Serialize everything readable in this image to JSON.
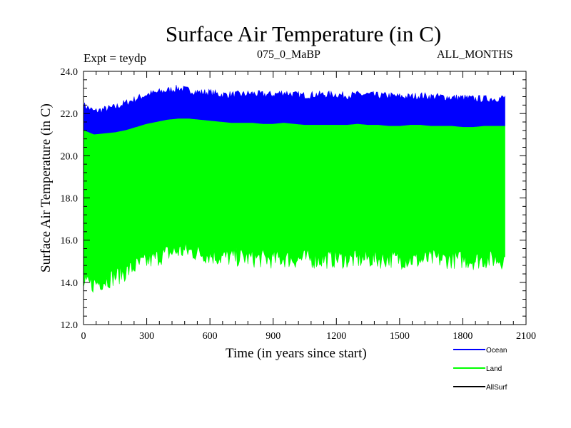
{
  "chart_data": {
    "type": "area",
    "title": "Surface Air Temperature (in C)",
    "subtitle_left": "Expt = teydp",
    "subtitle_center": "075_0_MaBP",
    "subtitle_right": "ALL_MONTHS",
    "xlabel": "Time (in years since start)",
    "ylabel": "Surface Air Temperature (in C)",
    "xlim": [
      0,
      2100
    ],
    "ylim": [
      12.0,
      24.0
    ],
    "x_ticks": [
      0,
      300,
      600,
      900,
      1200,
      1500,
      1800,
      2100
    ],
    "x_tick_labels": [
      "0",
      "300",
      "600",
      "900",
      "1200",
      "1500",
      "1800",
      "2100"
    ],
    "y_ticks": [
      12.0,
      14.0,
      16.0,
      18.0,
      20.0,
      22.0,
      24.0
    ],
    "y_tick_labels": [
      "12.0",
      "14.0",
      "16.0",
      "18.0",
      "20.0",
      "22.0",
      "24.0"
    ],
    "x": [
      0,
      50,
      100,
      150,
      200,
      250,
      300,
      350,
      400,
      450,
      500,
      550,
      600,
      650,
      700,
      750,
      800,
      850,
      900,
      950,
      1000,
      1050,
      1100,
      1150,
      1200,
      1250,
      1300,
      1350,
      1400,
      1450,
      1500,
      1550,
      1600,
      1650,
      1700,
      1750,
      1800,
      1850,
      1900,
      1950,
      2000
    ],
    "series": [
      {
        "name": "Ocean",
        "color": "#0000ff",
        "upper": [
          22.4,
          22.1,
          22.2,
          22.3,
          22.5,
          22.7,
          22.9,
          23.0,
          23.1,
          23.2,
          23.1,
          23.0,
          23.0,
          22.9,
          22.9,
          22.9,
          22.95,
          22.9,
          22.9,
          23.0,
          22.9,
          22.85,
          22.9,
          22.9,
          22.9,
          22.85,
          22.9,
          22.9,
          22.85,
          22.85,
          22.8,
          22.8,
          22.85,
          22.8,
          22.8,
          22.75,
          22.75,
          22.7,
          22.7,
          22.7,
          22.75
        ],
        "lower": [
          21.2,
          21.0,
          21.05,
          21.1,
          21.2,
          21.35,
          21.5,
          21.6,
          21.7,
          21.75,
          21.75,
          21.7,
          21.65,
          21.6,
          21.55,
          21.55,
          21.55,
          21.5,
          21.5,
          21.55,
          21.5,
          21.45,
          21.45,
          21.45,
          21.45,
          21.45,
          21.5,
          21.45,
          21.45,
          21.4,
          21.4,
          21.45,
          21.45,
          21.4,
          21.4,
          21.4,
          21.35,
          21.35,
          21.4,
          21.4,
          21.4
        ]
      },
      {
        "name": "Land",
        "color": "#00ff00",
        "upper": [
          21.2,
          21.0,
          21.05,
          21.1,
          21.2,
          21.35,
          21.5,
          21.6,
          21.7,
          21.75,
          21.75,
          21.7,
          21.65,
          21.6,
          21.55,
          21.55,
          21.55,
          21.5,
          21.5,
          21.55,
          21.5,
          21.45,
          21.45,
          21.45,
          21.45,
          21.45,
          21.5,
          21.45,
          21.45,
          21.4,
          21.4,
          21.45,
          21.45,
          21.4,
          21.4,
          21.4,
          21.35,
          21.35,
          21.4,
          21.4,
          21.4
        ],
        "lower": [
          13.7,
          13.75,
          13.9,
          14.1,
          14.3,
          14.6,
          14.8,
          15.0,
          15.2,
          15.3,
          15.3,
          15.2,
          15.1,
          15.0,
          15.0,
          15.0,
          14.95,
          14.95,
          14.9,
          14.95,
          14.9,
          14.95,
          14.9,
          14.9,
          14.95,
          14.9,
          14.9,
          14.95,
          14.9,
          14.95,
          14.9,
          14.9,
          14.85,
          14.95,
          14.9,
          14.9,
          14.9,
          14.85,
          14.9,
          14.9,
          14.9
        ]
      },
      {
        "name": "AllSurf",
        "color": "#000000",
        "upper": [],
        "lower": []
      }
    ],
    "legend": [
      "Ocean",
      "Land",
      "AllSurf"
    ],
    "legend_position": "bottom-right"
  }
}
